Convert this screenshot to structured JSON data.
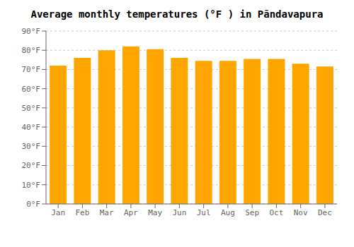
{
  "chart_data": {
    "type": "bar",
    "title": "Average monthly temperatures (°F ) in Pāndavapura",
    "categories": [
      "Jan",
      "Feb",
      "Mar",
      "Apr",
      "May",
      "Jun",
      "Jul",
      "Aug",
      "Sep",
      "Oct",
      "Nov",
      "Dec"
    ],
    "values": [
      72,
      76,
      80,
      82,
      80.5,
      76,
      74.5,
      74.5,
      75.5,
      75.5,
      73,
      71.5
    ],
    "color": "#FFA500",
    "ylim": [
      0,
      90
    ],
    "yticks": [
      {
        "value": 0,
        "label": "0°F"
      },
      {
        "value": 10,
        "label": "10°F"
      },
      {
        "value": 20,
        "label": "20°F"
      },
      {
        "value": 30,
        "label": "30°F"
      },
      {
        "value": 40,
        "label": "40°F"
      },
      {
        "value": 50,
        "label": "50°F"
      },
      {
        "value": 60,
        "label": "60°F"
      },
      {
        "value": 70,
        "label": "70°F"
      },
      {
        "value": 80,
        "label": "80°F"
      },
      {
        "value": 90,
        "label": "90°F"
      }
    ],
    "grid": true
  }
}
